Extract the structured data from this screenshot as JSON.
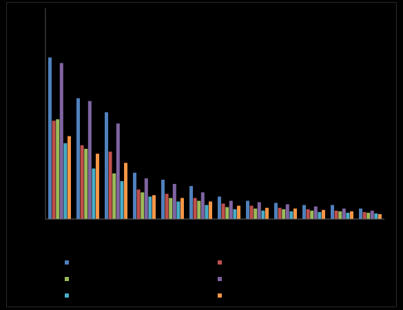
{
  "chart_data": {
    "type": "bar",
    "categories": [
      "",
      "",
      "",
      "",
      "",
      "",
      "",
      "",
      "",
      "",
      "",
      ""
    ],
    "series": [
      {
        "color": "#4f81bd",
        "values": [
          230,
          172,
          152,
          66,
          56,
          47,
          32,
          26,
          23,
          20,
          20,
          15
        ]
      },
      {
        "color": "#c0504d",
        "values": [
          140,
          105,
          96,
          42,
          36,
          30,
          22,
          19,
          16,
          14,
          12,
          10
        ]
      },
      {
        "color": "#9bbb59",
        "values": [
          142,
          100,
          65,
          38,
          30,
          26,
          17,
          15,
          14,
          12,
          11,
          9
        ]
      },
      {
        "color": "#8064a2",
        "values": [
          222,
          168,
          136,
          58,
          50,
          38,
          26,
          24,
          21,
          18,
          15,
          12
        ]
      },
      {
        "color": "#4bacc6",
        "values": [
          108,
          72,
          54,
          32,
          25,
          20,
          14,
          12,
          11,
          10,
          9,
          8
        ]
      },
      {
        "color": "#f79646",
        "values": [
          118,
          93,
          80,
          34,
          30,
          25,
          19,
          16,
          15,
          13,
          11,
          7
        ]
      }
    ],
    "ylim": [
      0,
      300
    ],
    "grid": false,
    "legend": "bottom",
    "legend_order": [
      0,
      1,
      2,
      3,
      4,
      5
    ]
  }
}
